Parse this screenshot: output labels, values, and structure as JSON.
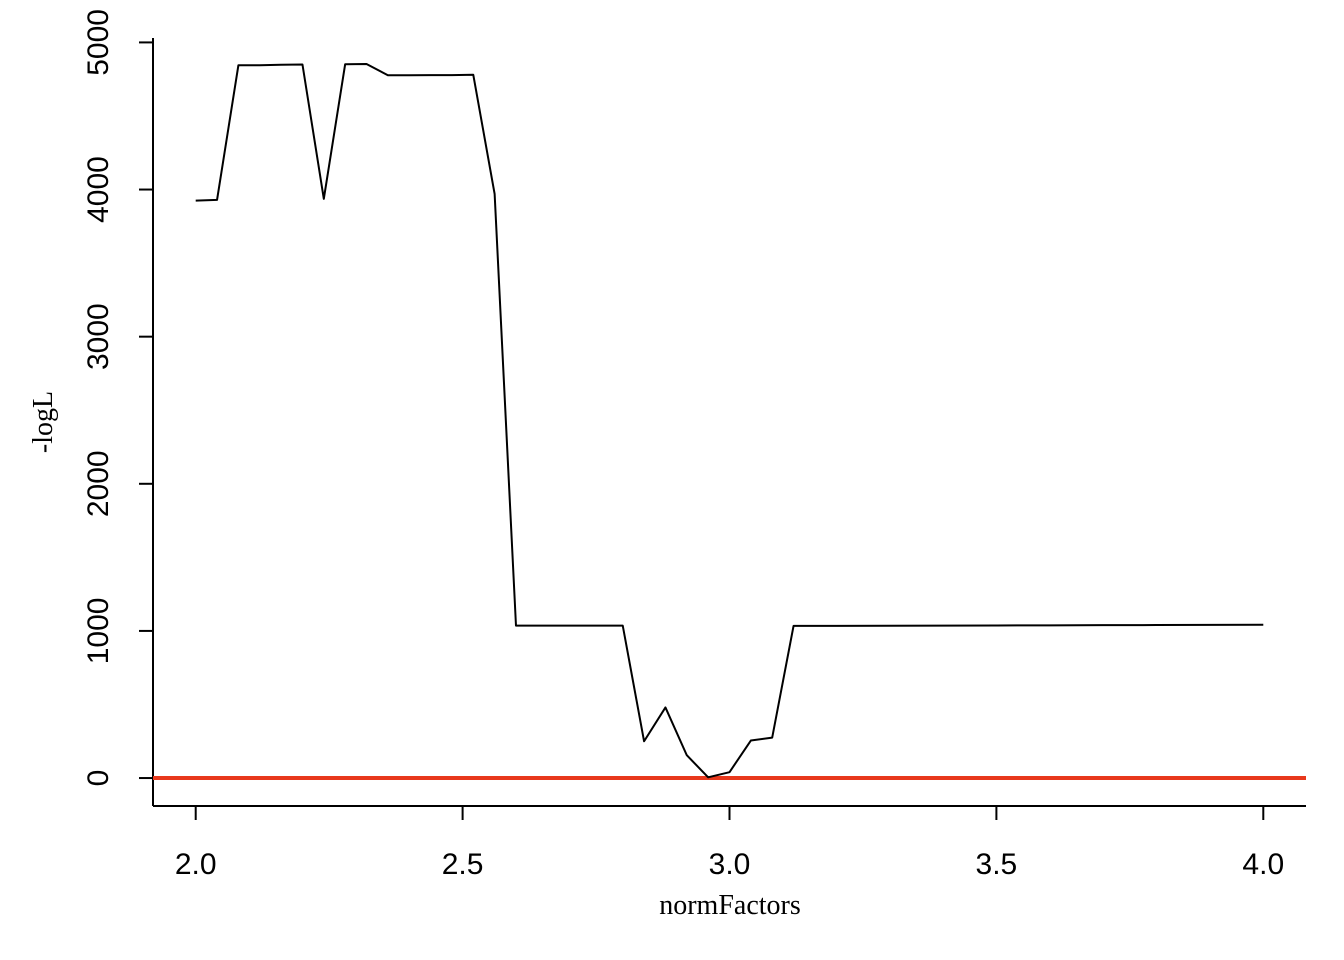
{
  "chart_data": {
    "type": "line",
    "title": "",
    "xlabel": "normFactors",
    "ylabel": "-logL",
    "xlim": [
      1.92,
      4.08
    ],
    "ylim": [
      -190,
      5030
    ],
    "xticks": [
      "2.0",
      "2.5",
      "3.0",
      "3.5",
      "4.0"
    ],
    "xtick_values": [
      2.0,
      2.5,
      3.0,
      3.5,
      4.0
    ],
    "yticks": [
      "0",
      "1000",
      "2000",
      "3000",
      "4000",
      "5000"
    ],
    "ytick_values": [
      0,
      1000,
      2000,
      3000,
      4000,
      5000
    ],
    "grid": false,
    "legend": "none",
    "series": [
      {
        "color": "#000000",
        "x": [
          2.0,
          2.04,
          2.08,
          2.12,
          2.16,
          2.2,
          2.24,
          2.28,
          2.32,
          2.36,
          2.4,
          2.44,
          2.48,
          2.52,
          2.56,
          2.6,
          2.64,
          2.68,
          2.72,
          2.76,
          2.8,
          2.84,
          2.88,
          2.92,
          2.96,
          3.0,
          3.04,
          3.08,
          3.12,
          3.16,
          3.2,
          3.3,
          3.4,
          3.5,
          3.6,
          3.7,
          3.8,
          3.9,
          4.0
        ],
        "y": [
          3925,
          3930,
          4845,
          4845,
          4848,
          4850,
          3937,
          4852,
          4853,
          4777,
          4777,
          4778,
          4778,
          4780,
          3970,
          1036,
          1036,
          1036,
          1036,
          1036,
          1036,
          250,
          480,
          155,
          5,
          40,
          255,
          275,
          1034,
          1034,
          1034,
          1035,
          1036,
          1037,
          1038,
          1039,
          1040,
          1041,
          1042
        ]
      }
    ],
    "reference_line": {
      "y": 0,
      "color": "#e8381c"
    }
  }
}
